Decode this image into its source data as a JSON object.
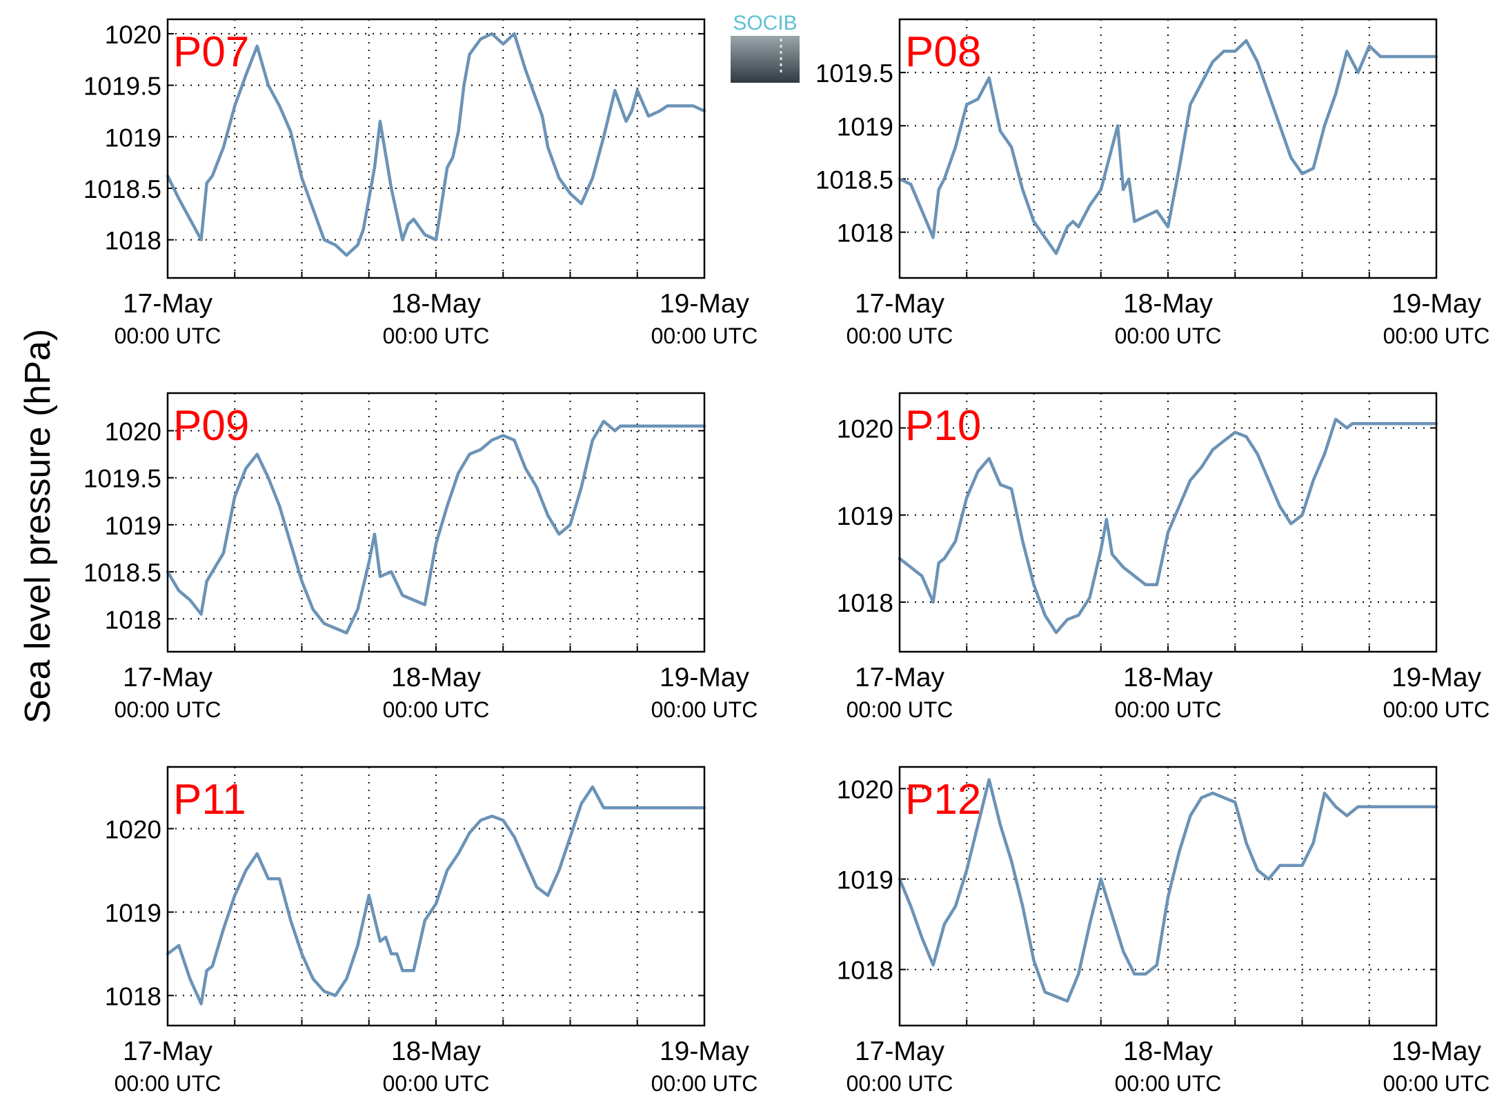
{
  "ylabel": "Sea level pressure (hPa)",
  "logo": {
    "text": "SOCIB"
  },
  "colors": {
    "series": "#6b93b6",
    "panel_label": "#ff0000",
    "logo_text": "#5fc0d6",
    "logo_top": "#9aa6ab",
    "logo_bottom": "#2f3b42"
  },
  "chart_data": [
    {
      "type": "line",
      "name": "P07",
      "grid": true,
      "xlim": [
        0,
        48
      ],
      "ylim": [
        1017.63,
        1020.14
      ],
      "x_ticks": [
        {
          "x": 0,
          "day": "17-May",
          "time": "00:00 UTC"
        },
        {
          "x": 24,
          "day": "18-May",
          "time": "00:00 UTC"
        },
        {
          "x": 48,
          "day": "19-May",
          "time": "00:00 UTC"
        }
      ],
      "y_ticks": [
        {
          "v": 1018,
          "label": "1018"
        },
        {
          "v": 1018.5,
          "label": "1018.5"
        },
        {
          "v": 1019,
          "label": "1019"
        },
        {
          "v": 1019.5,
          "label": "1019.5"
        },
        {
          "v": 1020,
          "label": "1020"
        }
      ],
      "x": [
        0,
        1,
        2,
        3,
        3.5,
        4,
        5,
        6,
        7,
        8,
        9,
        10,
        11,
        12,
        13,
        14,
        15,
        16,
        17,
        17.5,
        18,
        18.5,
        19,
        20,
        21,
        21.5,
        22,
        23,
        24,
        25,
        25.5,
        26,
        26.5,
        27,
        28,
        29,
        30,
        31,
        32,
        33,
        33.5,
        34,
        35,
        36,
        37,
        38,
        39,
        40,
        41,
        41.5,
        42,
        43,
        44,
        44.7,
        45,
        45.5,
        46,
        46.5,
        47,
        48
      ],
      "values": [
        1018.62,
        1018.4,
        1018.2,
        1018.0,
        1018.55,
        1018.62,
        1018.9,
        1019.3,
        1019.6,
        1019.88,
        1019.5,
        1019.3,
        1019.05,
        1018.6,
        1018.3,
        1018.0,
        1017.95,
        1017.85,
        1017.95,
        1018.1,
        1018.4,
        1018.7,
        1019.15,
        1018.5,
        1018.0,
        1018.15,
        1018.2,
        1018.05,
        1018.0,
        1018.7,
        1018.8,
        1019.05,
        1019.5,
        1019.8,
        1019.95,
        1020.0,
        1019.9,
        1020.0,
        1019.65,
        1019.35,
        1019.2,
        1018.9,
        1018.6,
        1018.45,
        1018.35,
        1018.6,
        1019.0,
        1019.45,
        1019.15,
        1019.25,
        1019.45,
        1019.2,
        1019.25,
        1019.3,
        1019.3,
        1019.3,
        1019.3,
        1019.3,
        1019.3,
        1019.25
      ]
    },
    {
      "type": "line",
      "name": "P08",
      "grid": true,
      "xlim": [
        0,
        48
      ],
      "ylim": [
        1017.57,
        1020.0
      ],
      "x_ticks": [
        {
          "x": 0,
          "day": "17-May",
          "time": "00:00 UTC"
        },
        {
          "x": 24,
          "day": "18-May",
          "time": "00:00 UTC"
        },
        {
          "x": 48,
          "day": "19-May",
          "time": "00:00 UTC"
        }
      ],
      "y_ticks": [
        {
          "v": 1018,
          "label": "1018"
        },
        {
          "v": 1018.5,
          "label": "1018.5"
        },
        {
          "v": 1019,
          "label": "1019"
        },
        {
          "v": 1019.5,
          "label": "1019.5"
        }
      ],
      "x": [
        0,
        1,
        2,
        3,
        3.5,
        4,
        5,
        6,
        7,
        8,
        9,
        10,
        11,
        12,
        13,
        14,
        15,
        15.5,
        16,
        17,
        18,
        19,
        19.5,
        20,
        20.5,
        21,
        22,
        23,
        24,
        25,
        26,
        27,
        28,
        29,
        30,
        31,
        32,
        33,
        34,
        35,
        36,
        37,
        38,
        39,
        40,
        41,
        42,
        43,
        44,
        45,
        46,
        47,
        48
      ],
      "values": [
        1018.5,
        1018.45,
        1018.2,
        1017.95,
        1018.4,
        1018.5,
        1018.8,
        1019.2,
        1019.25,
        1019.45,
        1018.95,
        1018.8,
        1018.4,
        1018.1,
        1017.95,
        1017.8,
        1018.05,
        1018.1,
        1018.05,
        1018.25,
        1018.4,
        1018.8,
        1019.0,
        1018.4,
        1018.5,
        1018.1,
        1018.15,
        1018.2,
        1018.05,
        1018.6,
        1019.2,
        1019.4,
        1019.6,
        1019.7,
        1019.7,
        1019.8,
        1019.6,
        1019.3,
        1019.0,
        1018.7,
        1018.55,
        1018.6,
        1019.0,
        1019.3,
        1019.7,
        1019.5,
        1019.75,
        1019.65,
        1019.65,
        1019.65,
        1019.65,
        1019.65,
        1019.65
      ]
    },
    {
      "type": "line",
      "name": "P09",
      "grid": true,
      "xlim": [
        0,
        48
      ],
      "ylim": [
        1017.65,
        1020.4
      ],
      "x_ticks": [
        {
          "x": 0,
          "day": "17-May",
          "time": "00:00 UTC"
        },
        {
          "x": 24,
          "day": "18-May",
          "time": "00:00 UTC"
        },
        {
          "x": 48,
          "day": "19-May",
          "time": "00:00 UTC"
        }
      ],
      "y_ticks": [
        {
          "v": 1018,
          "label": "1018"
        },
        {
          "v": 1018.5,
          "label": "1018.5"
        },
        {
          "v": 1019,
          "label": "1019"
        },
        {
          "v": 1019.5,
          "label": "1019.5"
        },
        {
          "v": 1020,
          "label": "1020"
        }
      ],
      "x": [
        0,
        1,
        2,
        3,
        3.5,
        4,
        5,
        6,
        7,
        8,
        9,
        10,
        11,
        12,
        13,
        14,
        15,
        16,
        17,
        18,
        18.5,
        19,
        20,
        21,
        22,
        23,
        24,
        25,
        26,
        27,
        28,
        29,
        30,
        31,
        32,
        33,
        34,
        35,
        36,
        37,
        38,
        39,
        40,
        40.5,
        41,
        42,
        43,
        44,
        45,
        46,
        47,
        48
      ],
      "values": [
        1018.5,
        1018.3,
        1018.2,
        1018.05,
        1018.4,
        1018.5,
        1018.7,
        1019.3,
        1019.6,
        1019.75,
        1019.5,
        1019.2,
        1018.8,
        1018.4,
        1018.1,
        1017.95,
        1017.9,
        1017.85,
        1018.1,
        1018.6,
        1018.9,
        1018.45,
        1018.5,
        1018.25,
        1018.2,
        1018.15,
        1018.8,
        1019.2,
        1019.55,
        1019.75,
        1019.8,
        1019.9,
        1019.95,
        1019.9,
        1019.6,
        1019.4,
        1019.1,
        1018.9,
        1019.0,
        1019.4,
        1019.9,
        1020.1,
        1020.0,
        1020.05,
        1020.05,
        1020.05,
        1020.05,
        1020.05,
        1020.05,
        1020.05,
        1020.05,
        1020.05
      ]
    },
    {
      "type": "line",
      "name": "P10",
      "grid": true,
      "xlim": [
        0,
        48
      ],
      "ylim": [
        1017.43,
        1020.4
      ],
      "x_ticks": [
        {
          "x": 0,
          "day": "17-May",
          "time": "00:00 UTC"
        },
        {
          "x": 24,
          "day": "18-May",
          "time": "00:00 UTC"
        },
        {
          "x": 48,
          "day": "19-May",
          "time": "00:00 UTC"
        }
      ],
      "y_ticks": [
        {
          "v": 1018,
          "label": "1018"
        },
        {
          "v": 1019,
          "label": "1019"
        },
        {
          "v": 1020,
          "label": "1020"
        }
      ],
      "x": [
        0,
        1,
        2,
        3,
        3.5,
        4,
        5,
        6,
        7,
        8,
        9,
        10,
        11,
        12,
        13,
        14,
        15,
        16,
        17,
        18,
        18.5,
        19,
        20,
        21,
        22,
        23,
        24,
        25,
        26,
        27,
        28,
        29,
        30,
        31,
        32,
        33,
        34,
        35,
        36,
        37,
        38,
        39,
        40,
        40.5,
        41,
        42,
        43,
        44,
        45,
        46,
        47,
        48
      ],
      "values": [
        1018.5,
        1018.4,
        1018.3,
        1018.0,
        1018.45,
        1018.5,
        1018.7,
        1019.2,
        1019.5,
        1019.65,
        1019.35,
        1019.3,
        1018.7,
        1018.2,
        1017.85,
        1017.65,
        1017.8,
        1017.85,
        1018.05,
        1018.6,
        1018.95,
        1018.55,
        1018.4,
        1018.3,
        1018.2,
        1018.2,
        1018.8,
        1019.1,
        1019.4,
        1019.55,
        1019.75,
        1019.85,
        1019.95,
        1019.9,
        1019.7,
        1019.4,
        1019.1,
        1018.9,
        1019.0,
        1019.4,
        1019.7,
        1020.1,
        1020.0,
        1020.05,
        1020.05,
        1020.05,
        1020.05,
        1020.05,
        1020.05,
        1020.05,
        1020.05,
        1020.05
      ]
    },
    {
      "type": "line",
      "name": "P11",
      "grid": true,
      "xlim": [
        0,
        48
      ],
      "ylim": [
        1017.64,
        1020.74
      ],
      "x_ticks": [
        {
          "x": 0,
          "day": "17-May",
          "time": "00:00 UTC"
        },
        {
          "x": 24,
          "day": "18-May",
          "time": "00:00 UTC"
        },
        {
          "x": 48,
          "day": "19-May",
          "time": "00:00 UTC"
        }
      ],
      "y_ticks": [
        {
          "v": 1018,
          "label": "1018"
        },
        {
          "v": 1019,
          "label": "1019"
        },
        {
          "v": 1020,
          "label": "1020"
        }
      ],
      "x": [
        0,
        1,
        2,
        3,
        3.5,
        4,
        5,
        6,
        7,
        8,
        9,
        10,
        11,
        12,
        13,
        14,
        15,
        16,
        17,
        18,
        19,
        19.5,
        20,
        20.5,
        21,
        22,
        23,
        24,
        25,
        26,
        27,
        28,
        29,
        30,
        31,
        32,
        33,
        34,
        35,
        36,
        37,
        38,
        39,
        40,
        41,
        42,
        43,
        44,
        45,
        46,
        47,
        48
      ],
      "values": [
        1018.5,
        1018.6,
        1018.2,
        1017.9,
        1018.3,
        1018.35,
        1018.8,
        1019.2,
        1019.5,
        1019.7,
        1019.4,
        1019.4,
        1018.9,
        1018.5,
        1018.2,
        1018.05,
        1018.0,
        1018.2,
        1018.6,
        1019.2,
        1018.65,
        1018.7,
        1018.5,
        1018.5,
        1018.3,
        1018.3,
        1018.9,
        1019.1,
        1019.5,
        1019.7,
        1019.95,
        1020.1,
        1020.15,
        1020.1,
        1019.9,
        1019.6,
        1019.3,
        1019.2,
        1019.5,
        1019.9,
        1020.3,
        1020.5,
        1020.25,
        1020.25,
        1020.25,
        1020.25,
        1020.25,
        1020.25,
        1020.25,
        1020.25,
        1020.25,
        1020.25
      ]
    },
    {
      "type": "line",
      "name": "P12",
      "grid": true,
      "xlim": [
        0,
        48
      ],
      "ylim": [
        1017.38,
        1020.24
      ],
      "x_ticks": [
        {
          "x": 0,
          "day": "17-May",
          "time": "00:00 UTC"
        },
        {
          "x": 24,
          "day": "18-May",
          "time": "00:00 UTC"
        },
        {
          "x": 48,
          "day": "19-May",
          "time": "00:00 UTC"
        }
      ],
      "y_ticks": [
        {
          "v": 1018,
          "label": "1018"
        },
        {
          "v": 1019,
          "label": "1019"
        },
        {
          "v": 1020,
          "label": "1020"
        }
      ],
      "x": [
        0,
        1,
        2,
        3,
        4,
        5,
        6,
        7,
        8,
        9,
        10,
        11,
        12,
        13,
        14,
        15,
        16,
        17,
        18,
        19,
        20,
        21,
        22,
        23,
        24,
        25,
        26,
        27,
        28,
        29,
        30,
        31,
        32,
        33,
        34,
        35,
        36,
        37,
        38,
        39,
        40,
        41,
        42,
        43,
        44,
        45,
        46,
        47,
        48
      ],
      "values": [
        1019.0,
        1018.7,
        1018.35,
        1018.05,
        1018.5,
        1018.7,
        1019.1,
        1019.6,
        1020.1,
        1019.6,
        1019.2,
        1018.7,
        1018.1,
        1017.75,
        1017.7,
        1017.65,
        1017.95,
        1018.5,
        1019.0,
        1018.6,
        1018.2,
        1017.95,
        1017.95,
        1018.05,
        1018.8,
        1019.3,
        1019.7,
        1019.9,
        1019.95,
        1019.9,
        1019.85,
        1019.4,
        1019.1,
        1019.0,
        1019.15,
        1019.15,
        1019.15,
        1019.4,
        1019.95,
        1019.8,
        1019.7,
        1019.8,
        1019.8,
        1019.8,
        1019.8,
        1019.8,
        1019.8,
        1019.8,
        1019.8
      ]
    }
  ]
}
